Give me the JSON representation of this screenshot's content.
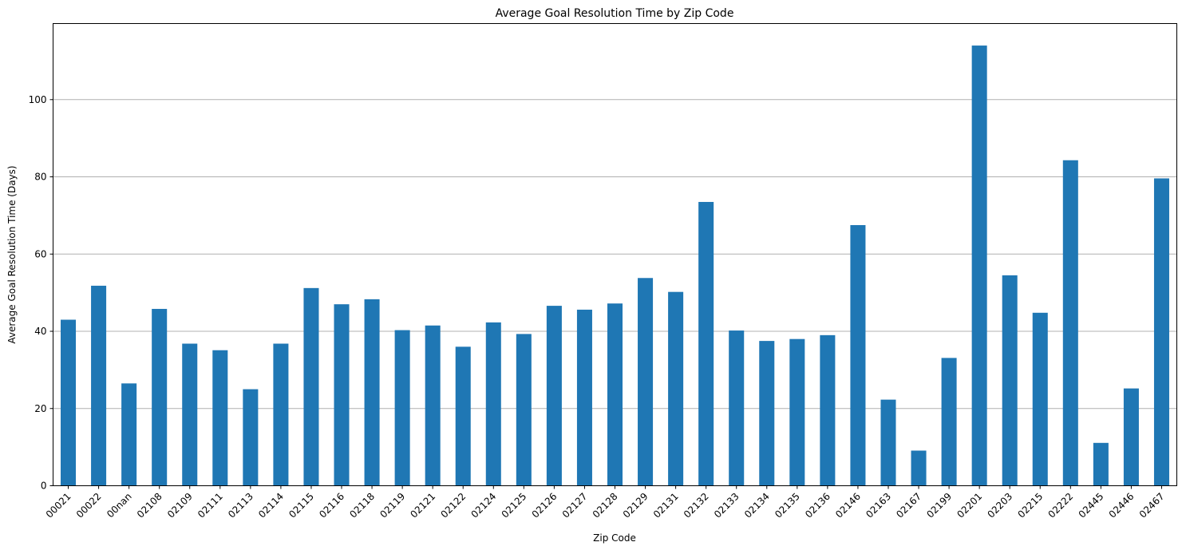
{
  "chart_data": {
    "type": "bar",
    "title": "Average Goal Resolution Time by Zip Code",
    "xlabel": "Zip Code",
    "ylabel": "Average Goal Resolution Time (Days)",
    "categories": [
      "00021",
      "00022",
      "00nan",
      "02108",
      "02109",
      "02111",
      "02113",
      "02114",
      "02115",
      "02116",
      "02118",
      "02119",
      "02121",
      "02122",
      "02124",
      "02125",
      "02126",
      "02127",
      "02128",
      "02129",
      "02131",
      "02132",
      "02133",
      "02134",
      "02135",
      "02136",
      "02146",
      "02163",
      "02167",
      "02199",
      "02201",
      "02203",
      "02215",
      "02222",
      "02445",
      "02446",
      "02467"
    ],
    "values": [
      43,
      51.8,
      26.5,
      45.8,
      36.8,
      35.1,
      25,
      36.8,
      51.2,
      47,
      48.3,
      40.3,
      41.5,
      36,
      42.3,
      39.3,
      46.6,
      45.6,
      47.2,
      53.8,
      50.2,
      73.5,
      40.2,
      37.5,
      38,
      39,
      67.5,
      22.3,
      9.1,
      33.1,
      114,
      54.5,
      44.8,
      84.3,
      11.1,
      25.2,
      79.6
    ],
    "yticks": [
      0,
      20,
      40,
      60,
      80,
      100
    ],
    "ylim": [
      0,
      119.7
    ],
    "grid": "y",
    "legend": "none",
    "bar_color": "#1f77b4"
  }
}
